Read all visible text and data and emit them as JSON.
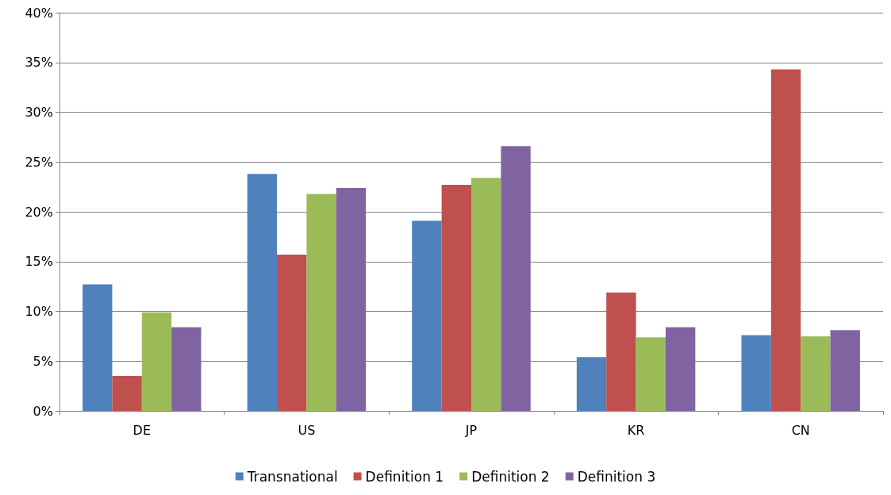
{
  "chart_data": {
    "type": "bar",
    "categories": [
      "DE",
      "US",
      "JP",
      "KR",
      "CN"
    ],
    "series": [
      {
        "name": "Transnational",
        "color": "#4f81bd",
        "values": [
          12.7,
          23.8,
          19.1,
          5.4,
          7.6
        ]
      },
      {
        "name": "Definition 1",
        "color": "#c0504d",
        "values": [
          3.5,
          15.7,
          22.7,
          11.9,
          34.3
        ]
      },
      {
        "name": "Definition 2",
        "color": "#9bbb59",
        "values": [
          9.9,
          21.8,
          23.4,
          7.4,
          7.5
        ]
      },
      {
        "name": "Definition 3",
        "color": "#8064a2",
        "values": [
          8.4,
          22.4,
          26.6,
          8.4,
          8.1
        ]
      }
    ],
    "ylim": [
      0,
      40
    ],
    "yticks": [
      {
        "value": 0,
        "label": "0%"
      },
      {
        "value": 5,
        "label": "5%"
      },
      {
        "value": 10,
        "label": "10%"
      },
      {
        "value": 15,
        "label": "15%"
      },
      {
        "value": 20,
        "label": "20%"
      },
      {
        "value": 25,
        "label": "25%"
      },
      {
        "value": 30,
        "label": "30%"
      },
      {
        "value": 35,
        "label": "35%"
      },
      {
        "value": 40,
        "label": "40%"
      }
    ],
    "grid": "y",
    "legend": "bottom"
  }
}
